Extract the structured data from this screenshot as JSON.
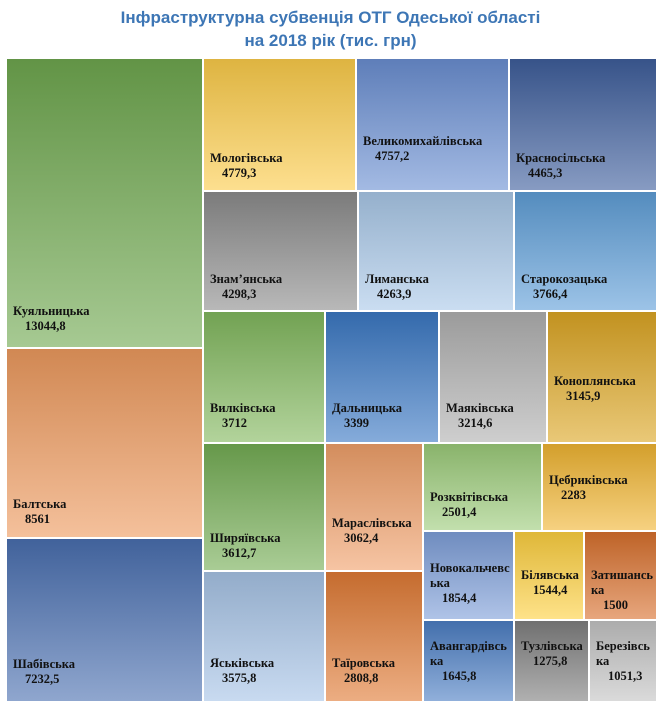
{
  "title_line1": "Інфраструктурна субвенція ОТГ Одеської області",
  "title_line2": "на 2018 рік (тис. грн)",
  "chart_data": {
    "type": "treemap",
    "title": "Інфраструктурна субвенція ОТГ Одеської області на 2018 рік (тис. грн)",
    "items": [
      {
        "name": "Куяльницька",
        "value": "13044,8",
        "num": 13044.8,
        "color": "#6fa84f"
      },
      {
        "name": "Балтська",
        "value": "8561",
        "num": 8561,
        "color": "#ee9a5e"
      },
      {
        "name": "Шабівська",
        "value": "7232,5",
        "num": 7232.5,
        "color": "#4a6fb0"
      },
      {
        "name": "Мологівська",
        "value": "4779,3",
        "num": 4779.3,
        "color": "#fccc4a"
      },
      {
        "name": "Великомихайлівська",
        "value": "4757,2",
        "num": 4757.2,
        "color": "#6b8fd2"
      },
      {
        "name": "Красносільська",
        "value": "4465,3",
        "num": 4465.3,
        "color": "#3e5e9c"
      },
      {
        "name": "Знам’янська",
        "value": "4298,3",
        "num": 4298.3,
        "color": "#8c8c8c"
      },
      {
        "name": "Лиманська",
        "value": "4263,9",
        "num": 4263.9,
        "color": "#a9c8e8"
      },
      {
        "name": "Старокозацька",
        "value": "3766,4",
        "num": 3766.4,
        "color": "#5f9fd8"
      },
      {
        "name": "Вилківська",
        "value": "3712",
        "num": 3712,
        "color": "#82b85e"
      },
      {
        "name": "Дальницька",
        "value": "3399",
        "num": 3399,
        "color": "#3b78c4"
      },
      {
        "name": "Маяківська",
        "value": "3214,6",
        "num": 3214.6,
        "color": "#b0b0b0"
      },
      {
        "name": "Коноплянська",
        "value": "3145,9",
        "num": 3145.9,
        "color": "#dca624"
      },
      {
        "name": "Ширяївська",
        "value": "3612,7",
        "num": 3612.7,
        "color": "#74ad54"
      },
      {
        "name": "Мараслівська",
        "value": "3062,4",
        "num": 3062.4,
        "color": "#f0a06a"
      },
      {
        "name": "Розквітівська",
        "value": "2501,4",
        "num": 2501.4,
        "color": "#9ccb7a"
      },
      {
        "name": "Цебриківська",
        "value": "2283",
        "num": 2283,
        "color": "#f0b532"
      },
      {
        "name": "Новокальчевська",
        "value": "1854,4",
        "num": 1854.4,
        "color": "#7e9fd9"
      },
      {
        "name": "Білявська",
        "value": "1544,4",
        "num": 1544.4,
        "color": "#fdd040"
      },
      {
        "name": "Затишанська",
        "value": "1500",
        "num": 1500,
        "color": "#d8702e"
      },
      {
        "name": "Яськівська",
        "value": "3575,8",
        "num": 3575.8,
        "color": "#a7c3e6"
      },
      {
        "name": "Таїровська",
        "value": "2808,8",
        "num": 2808.8,
        "color": "#e07b35"
      },
      {
        "name": "Авангардівська",
        "value": "1645,8",
        "num": 1645.8,
        "color": "#4c7ec4"
      },
      {
        "name": "Тузлівська",
        "value": "1275,8",
        "num": 1275.8,
        "color": "#7f7f7f"
      },
      {
        "name": "Березівська",
        "value": "1051,3",
        "num": 1051.3,
        "color": "#c4c4c4"
      }
    ]
  }
}
